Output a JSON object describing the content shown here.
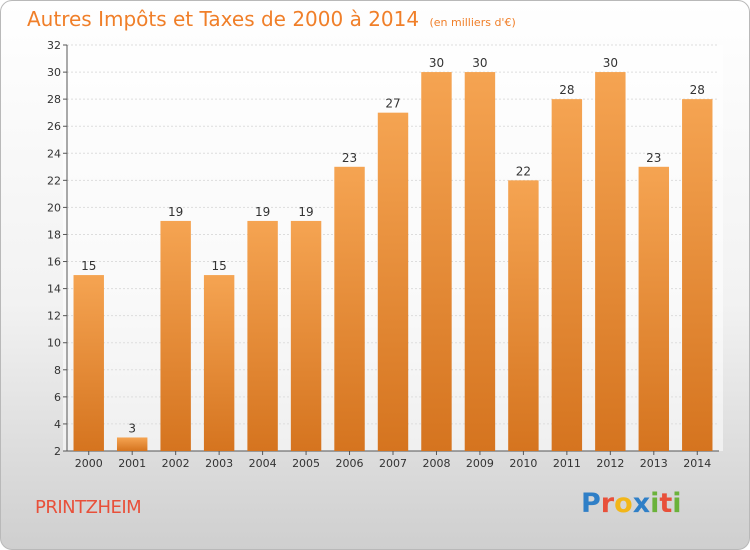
{
  "header": {
    "title": "Autres Impôts et Taxes de 2000 à 2014",
    "unit": "(en milliers d'€)"
  },
  "footer": {
    "city": "PRINTZHEIM"
  },
  "logo": {
    "letters": [
      {
        "char": "P",
        "color": "#2f7fc7"
      },
      {
        "char": "r",
        "color": "#e8503a"
      },
      {
        "char": "o",
        "color": "#f2b619"
      },
      {
        "char": "x",
        "color": "#2f7fc7"
      },
      {
        "char": "i",
        "color": "#6bb23a"
      },
      {
        "char": "t",
        "color": "#e8503a"
      },
      {
        "char": "i",
        "color": "#6bb23a"
      }
    ]
  },
  "chart_data": {
    "type": "bar",
    "title": "Autres Impôts et Taxes de 2000 à 2014",
    "subtitle": "(en milliers d'€)",
    "categories": [
      "2000",
      "2001",
      "2002",
      "2003",
      "2004",
      "2005",
      "2006",
      "2007",
      "2008",
      "2009",
      "2010",
      "2011",
      "2012",
      "2013",
      "2014"
    ],
    "values": [
      15,
      3,
      19,
      15,
      19,
      19,
      23,
      27,
      30,
      30,
      22,
      28,
      30,
      23,
      28
    ],
    "ylim": [
      2,
      32
    ],
    "yticks": [
      2,
      4,
      6,
      8,
      10,
      12,
      14,
      16,
      18,
      20,
      22,
      24,
      26,
      28,
      30,
      32
    ],
    "grid": true,
    "bar_color_top": "#f5a452",
    "bar_color_bottom": "#d5741f",
    "grid_color": "#dddddd"
  }
}
